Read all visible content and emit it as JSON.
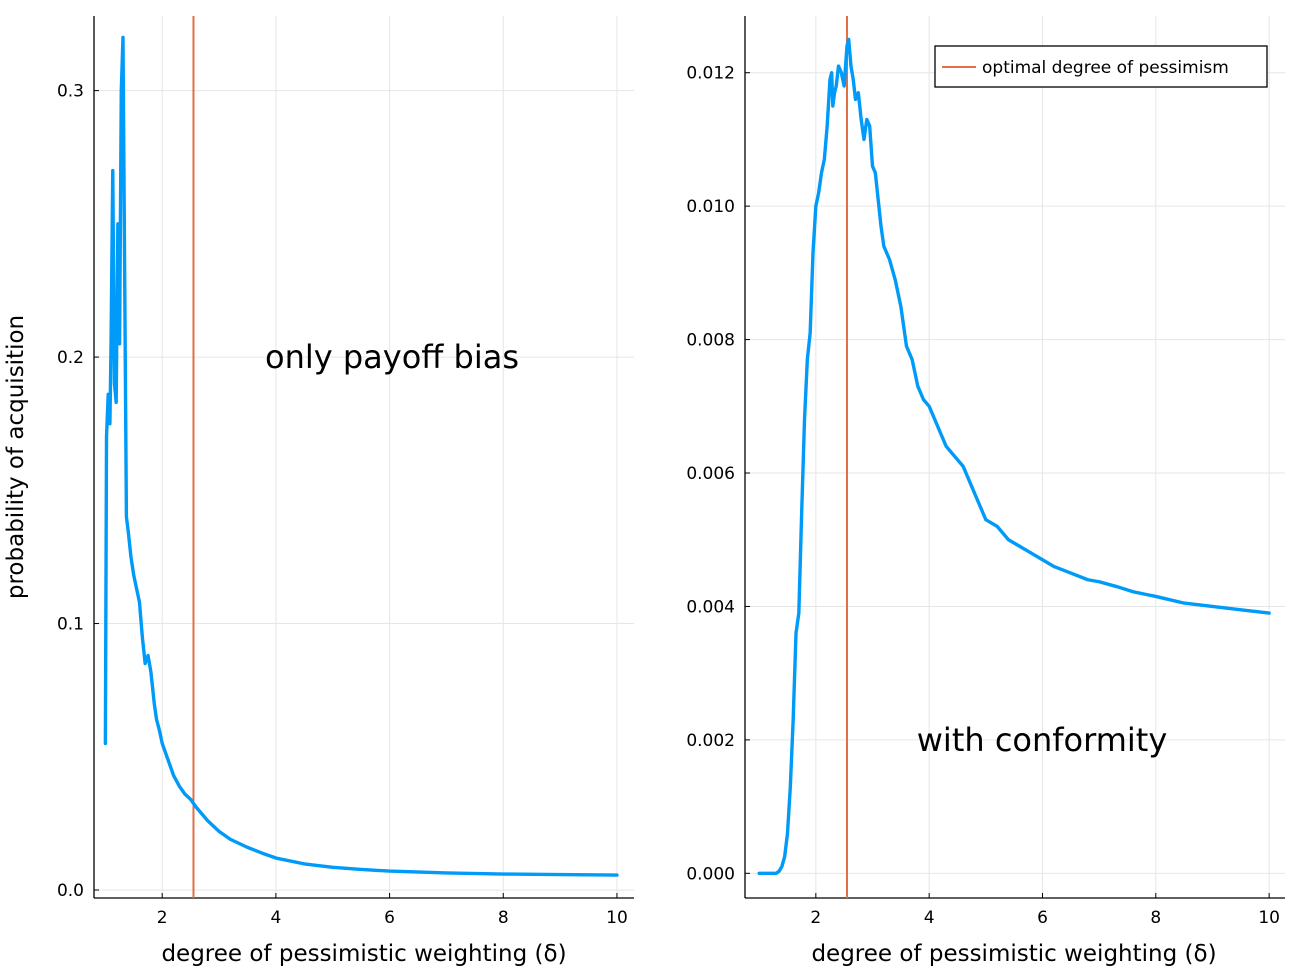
{
  "colors": {
    "series": "#009af9",
    "optimal": "#e26f46",
    "grid": "#e6e6e6",
    "axis": "#000000"
  },
  "chart_data": [
    {
      "type": "line",
      "title": "",
      "xlabel": "degree of pessimistic weighting (δ)",
      "ylabel": "probability of acquisition",
      "annotation": "only payoff bias",
      "xlim": [
        0.8,
        10.3
      ],
      "ylim": [
        -0.003,
        0.328
      ],
      "xticks": [
        2,
        4,
        6,
        8,
        10
      ],
      "xtick_labels": [
        "2",
        "4",
        "6",
        "8",
        "10"
      ],
      "yticks": [
        0.0,
        0.1,
        0.2,
        0.3
      ],
      "ytick_labels": [
        "0.0",
        "0.1",
        "0.2",
        "0.3"
      ],
      "grid": true,
      "vline": 2.55,
      "series": [
        {
          "x": [
            1.0,
            1.02,
            1.05,
            1.08,
            1.1,
            1.13,
            1.16,
            1.19,
            1.22,
            1.25,
            1.28,
            1.31,
            1.34,
            1.37,
            1.4,
            1.45,
            1.5,
            1.55,
            1.6,
            1.65,
            1.7,
            1.75,
            1.8,
            1.83,
            1.86,
            1.9,
            1.95,
            2.0,
            2.1,
            2.2,
            2.3,
            2.4,
            2.5,
            2.6,
            2.8,
            3.0,
            3.2,
            3.5,
            3.8,
            4.0,
            4.5,
            5.0,
            5.5,
            6.0,
            7.0,
            8.0,
            9.0,
            10.0
          ],
          "y": [
            0.055,
            0.17,
            0.186,
            0.175,
            0.205,
            0.27,
            0.19,
            0.183,
            0.25,
            0.205,
            0.3,
            0.32,
            0.23,
            0.14,
            0.135,
            0.125,
            0.118,
            0.113,
            0.108,
            0.095,
            0.085,
            0.088,
            0.082,
            0.076,
            0.07,
            0.064,
            0.06,
            0.055,
            0.049,
            0.043,
            0.039,
            0.036,
            0.034,
            0.031,
            0.026,
            0.022,
            0.019,
            0.016,
            0.0135,
            0.012,
            0.0098,
            0.0085,
            0.0077,
            0.0071,
            0.0064,
            0.006,
            0.0058,
            0.0056
          ]
        }
      ]
    },
    {
      "type": "line",
      "title": "",
      "xlabel": "degree of pessimistic weighting (δ)",
      "ylabel": "",
      "annotation": "with conformity",
      "legend": {
        "entries": [
          "optimal degree of pessimism"
        ],
        "placement": "top-right"
      },
      "xlim": [
        0.75,
        10.28
      ],
      "ylim": [
        -0.00037,
        0.01285
      ],
      "xticks": [
        2,
        4,
        6,
        8,
        10
      ],
      "xtick_labels": [
        "2",
        "4",
        "6",
        "8",
        "10"
      ],
      "yticks": [
        0.0,
        0.002,
        0.004,
        0.006,
        0.008,
        0.01,
        0.012
      ],
      "ytick_labels": [
        "0.000",
        "0.002",
        "0.004",
        "0.006",
        "0.008",
        "0.010",
        "0.012"
      ],
      "grid": true,
      "vline": 2.55,
      "series": [
        {
          "x": [
            1.0,
            1.1,
            1.2,
            1.3,
            1.35,
            1.4,
            1.45,
            1.5,
            1.55,
            1.6,
            1.65,
            1.7,
            1.75,
            1.8,
            1.85,
            1.9,
            1.95,
            2.0,
            2.05,
            2.1,
            2.15,
            2.2,
            2.25,
            2.28,
            2.3,
            2.33,
            2.36,
            2.4,
            2.45,
            2.5,
            2.55,
            2.58,
            2.62,
            2.66,
            2.7,
            2.75,
            2.8,
            2.85,
            2.9,
            2.95,
            3.0,
            3.05,
            3.1,
            3.15,
            3.2,
            3.3,
            3.4,
            3.5,
            3.6,
            3.7,
            3.8,
            3.9,
            4.0,
            4.1,
            4.2,
            4.3,
            4.4,
            4.5,
            4.6,
            4.7,
            4.8,
            4.9,
            5.0,
            5.2,
            5.4,
            5.6,
            5.8,
            6.0,
            6.2,
            6.5,
            6.8,
            7.0,
            7.3,
            7.6,
            8.0,
            8.5,
            9.0,
            9.5,
            10.0
          ],
          "y": [
            0.0,
            0.0,
            0.0,
            0.0,
            3e-05,
            0.0001,
            0.00025,
            0.0006,
            0.0013,
            0.0023,
            0.0036,
            0.0039,
            0.0054,
            0.0068,
            0.0077,
            0.0081,
            0.0093,
            0.01,
            0.0102,
            0.0105,
            0.0107,
            0.0112,
            0.0119,
            0.012,
            0.0115,
            0.0117,
            0.0118,
            0.0121,
            0.012,
            0.0118,
            0.0124,
            0.0125,
            0.0121,
            0.0119,
            0.0116,
            0.0117,
            0.0113,
            0.011,
            0.0113,
            0.0112,
            0.0106,
            0.0105,
            0.0101,
            0.0097,
            0.0094,
            0.0092,
            0.0089,
            0.0085,
            0.0079,
            0.0077,
            0.0073,
            0.0071,
            0.007,
            0.0068,
            0.0066,
            0.0064,
            0.0063,
            0.0062,
            0.0061,
            0.0059,
            0.0057,
            0.0055,
            0.0053,
            0.0052,
            0.005,
            0.0049,
            0.0048,
            0.0047,
            0.0046,
            0.0045,
            0.0044,
            0.00437,
            0.0043,
            0.00422,
            0.00415,
            0.00405,
            0.004,
            0.00395,
            0.0039
          ]
        }
      ]
    }
  ]
}
